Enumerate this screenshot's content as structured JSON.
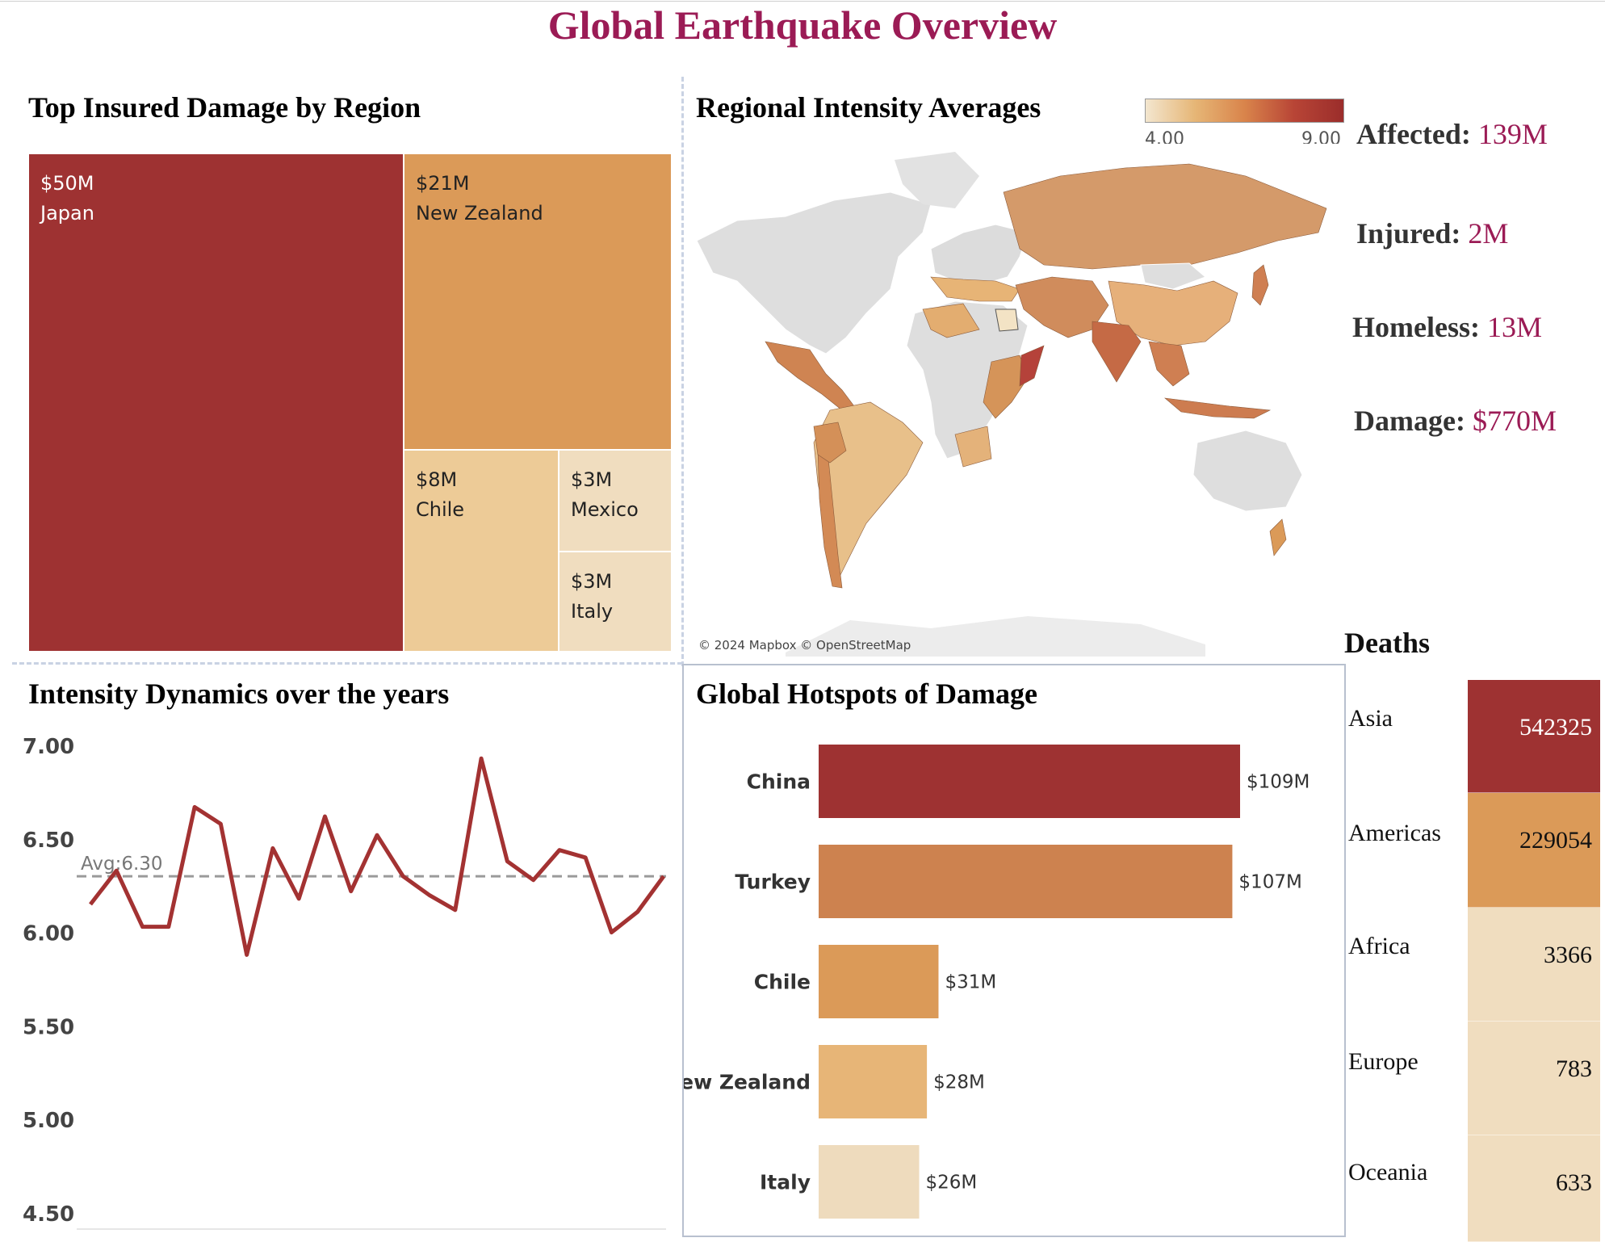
{
  "title": "Global Earthquake Overview",
  "treemap": {
    "title": "Top Insured Damage by Region",
    "cells": [
      {
        "value": "$50M",
        "region": "Japan",
        "color": "#9e3232",
        "text_color": "#ffffff"
      },
      {
        "value": "$21M",
        "region": "New Zealand",
        "color": "#db9a58",
        "text_color": "#222222"
      },
      {
        "value": "$8M",
        "region": "Chile",
        "color": "#edcb97",
        "text_color": "#222222"
      },
      {
        "value": "$3M",
        "region": "Mexico",
        "color": "#f0ddbf",
        "text_color": "#222222"
      },
      {
        "value": "$3M",
        "region": "Italy",
        "color": "#f0ddbf",
        "text_color": "#222222"
      }
    ]
  },
  "map": {
    "title": "Regional Intensity Averages",
    "legend_min": "4.00",
    "legend_max": "9.00",
    "credit": "© 2024 Mapbox © OpenStreetMap",
    "legend_colors": [
      "#f3e6cf",
      "#e6b676",
      "#d9844b",
      "#b84536",
      "#9b2d2b"
    ]
  },
  "kpis": {
    "affected_label": "Affected:",
    "affected_value": "139M",
    "injured_label": "Injured:",
    "injured_value": "2M",
    "homeless_label": "Homeless:",
    "homeless_value": "13M",
    "damage_label": "Damage:",
    "damage_value": "$770M"
  },
  "line": {
    "title": "Intensity Dynamics over the years",
    "avg_label": "Avg:6.30"
  },
  "hotspots": {
    "title": "Global Hotspots of Damage"
  },
  "deaths": {
    "title": "Deaths",
    "rows": [
      {
        "region": "Asia",
        "value": "542325",
        "color": "#9e3232",
        "text_color": "#ffffff"
      },
      {
        "region": "Americas",
        "value": "229054",
        "color": "#db9a58",
        "text_color": "#111111"
      },
      {
        "region": "Africa",
        "value": "3366",
        "color": "#f0ddbf",
        "text_color": "#111111"
      },
      {
        "region": "Europe",
        "value": "783",
        "color": "#f0ddbf",
        "text_color": "#111111"
      },
      {
        "region": "Oceania",
        "value": "633",
        "color": "#f0ddbf",
        "text_color": "#111111"
      }
    ]
  },
  "chart_data": [
    {
      "type": "treemap",
      "title": "Top Insured Damage by Region",
      "categories": [
        "Japan",
        "New Zealand",
        "Chile",
        "Mexico",
        "Italy"
      ],
      "values": [
        50,
        21,
        8,
        3,
        3
      ],
      "unit": "$M"
    },
    {
      "type": "line",
      "title": "Intensity Dynamics over the years",
      "y": [
        6.15,
        6.33,
        6.03,
        6.03,
        6.67,
        6.58,
        5.88,
        6.45,
        6.18,
        6.62,
        6.22,
        6.52,
        6.3,
        6.2,
        6.12,
        6.93,
        6.38,
        6.28,
        6.44,
        6.4,
        6.0,
        6.11,
        6.3
      ],
      "ylim": [
        4.5,
        7.0
      ],
      "yticks": [
        "7.00",
        "6.50",
        "6.00",
        "5.50",
        "5.00",
        "4.50"
      ],
      "average": 6.3,
      "color": "#a33232"
    },
    {
      "type": "bar",
      "orientation": "horizontal",
      "title": "Global Hotspots of Damage",
      "categories": [
        "China",
        "Turkey",
        "Chile",
        "New Zealand",
        "Italy"
      ],
      "values": [
        109,
        107,
        31,
        28,
        26
      ],
      "labels": [
        "$109M",
        "$107M",
        "$31M",
        "$28M",
        "$26M"
      ],
      "colors": [
        "#9e3232",
        "#cd824f",
        "#db9a58",
        "#e7b577",
        "#eedbbd"
      ]
    },
    {
      "type": "table",
      "title": "Deaths",
      "categories": [
        "Asia",
        "Americas",
        "Africa",
        "Europe",
        "Oceania"
      ],
      "values": [
        542325,
        229054,
        3366,
        783,
        633
      ]
    }
  ]
}
